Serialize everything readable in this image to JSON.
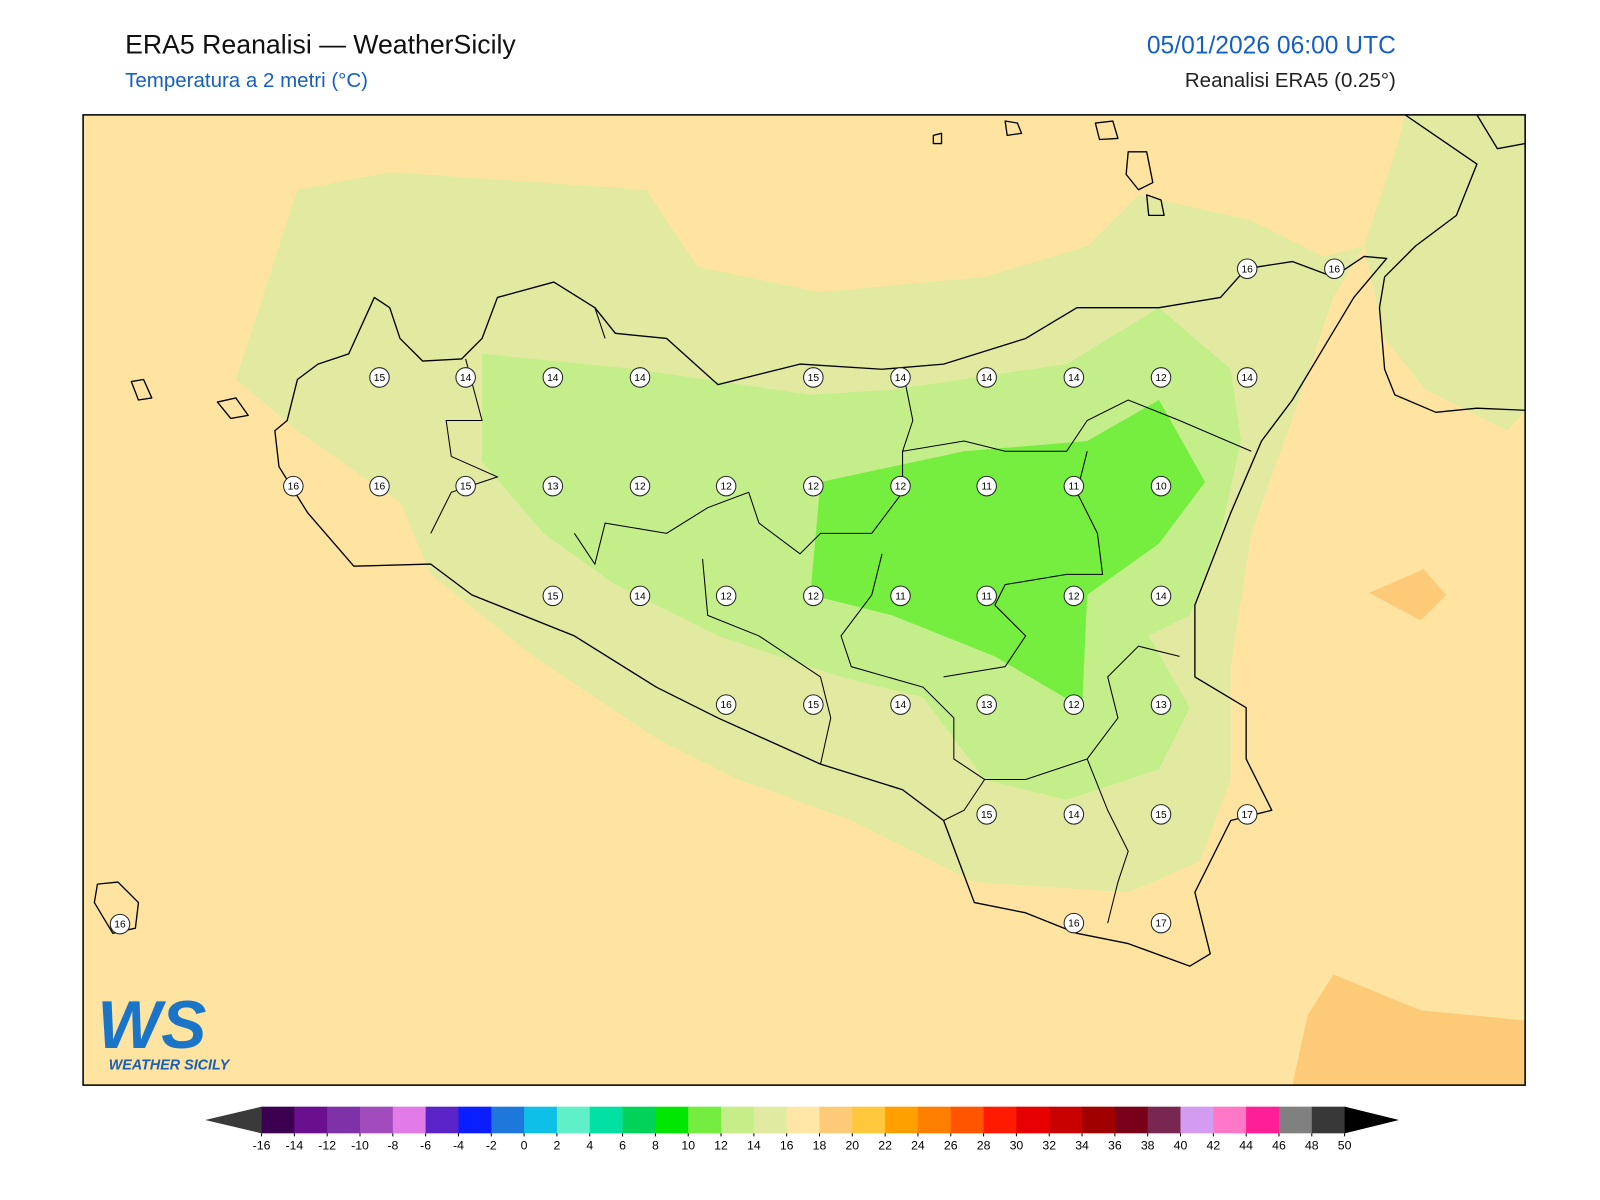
{
  "header": {
    "title": "ERA5 Reanalisi — WeatherSicily",
    "subtitle": "Temperatura a 2 metri (°C)",
    "datetime": "05/01/2026 06:00 UTC",
    "source": "Reanalisi ERA5 (0.25°)"
  },
  "stations": [
    16,
    16,
    15,
    14,
    14,
    14,
    15,
    14,
    14,
    14,
    12,
    14,
    16,
    16,
    15,
    13,
    12,
    12,
    12,
    12,
    11,
    11,
    10,
    15,
    14,
    12,
    12,
    11,
    11,
    12,
    14,
    16,
    15,
    14,
    13,
    12,
    13,
    15,
    14,
    15,
    17,
    16,
    17,
    16
  ],
  "colorbar": {
    "ticks": [
      -16,
      -14,
      -12,
      -10,
      -8,
      -6,
      -4,
      -2,
      0,
      2,
      4,
      6,
      8,
      10,
      12,
      14,
      16,
      18,
      20,
      22,
      24,
      26,
      28,
      30,
      32,
      34,
      36,
      38,
      40,
      42,
      44,
      46,
      48,
      50
    ],
    "colors": [
      "#3b0050",
      "#6a0f8e",
      "#7f32a8",
      "#a04cbc",
      "#e07be8",
      "#5a23c8",
      "#0a1eff",
      "#1e78dc",
      "#0fc0e6",
      "#5ff0c8",
      "#00e0a0",
      "#00d25a",
      "#00e600",
      "#75ed40",
      "#c5ee88",
      "#e0eaa0",
      "#fee6a6",
      "#fdcb78",
      "#ffc83c",
      "#ffa000",
      "#ff7f00",
      "#ff5500",
      "#ff1a00",
      "#e60000",
      "#c80000",
      "#a00000",
      "#780018",
      "#782850",
      "#d49cf0",
      "#ff78c8",
      "#ff1e96",
      "#808080",
      "#383838"
    ],
    "under_color": "#3a3a3a",
    "over_color": "#000000"
  },
  "logo": {
    "mark": "WS",
    "name": "WEATHER SICILY"
  }
}
